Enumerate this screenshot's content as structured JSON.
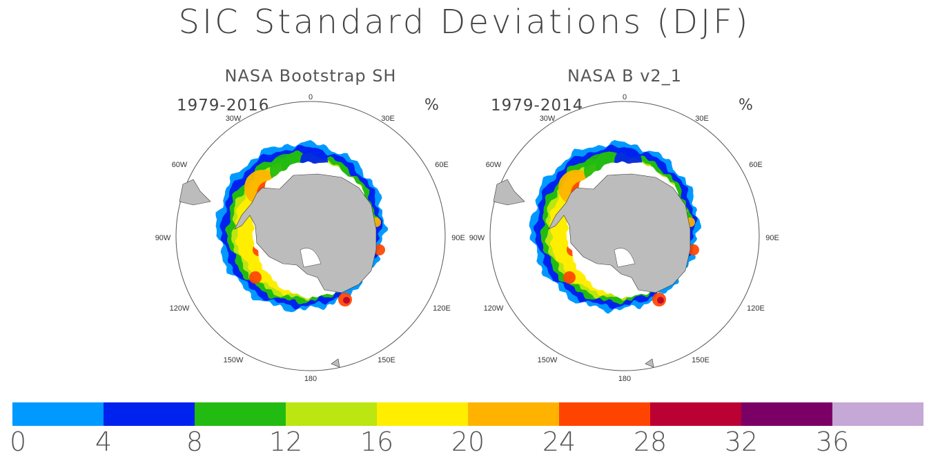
{
  "title": "SIC Standard Deviations (DJF)",
  "panels": [
    {
      "title": "NASA Bootstrap SH",
      "period": "1979-2016",
      "unit": "%",
      "lon_labels": [
        "0",
        "30E",
        "60E",
        "90E",
        "120E",
        "150E",
        "180",
        "150W",
        "120W",
        "90W",
        "60W",
        "30W"
      ]
    },
    {
      "title": "NASA B v2_1",
      "period": "1979-2014",
      "unit": "%",
      "lon_labels": [
        "0",
        "30E",
        "60E",
        "90E",
        "120E",
        "150E",
        "180",
        "150W",
        "120W",
        "90W",
        "60W",
        "30W"
      ]
    }
  ],
  "colorbar": {
    "colors": [
      "#0099ff",
      "#0022ee",
      "#22bb11",
      "#bbe611",
      "#ffee00",
      "#ffb300",
      "#ff4400",
      "#bb0033",
      "#7a0066",
      "#c5a8d6"
    ],
    "labels": [
      "0",
      "4",
      "8",
      "12",
      "16",
      "20",
      "24",
      "28",
      "32",
      "36"
    ]
  },
  "colors": {
    "land": "#bcbcbc",
    "ocean": "#ffffff"
  }
}
